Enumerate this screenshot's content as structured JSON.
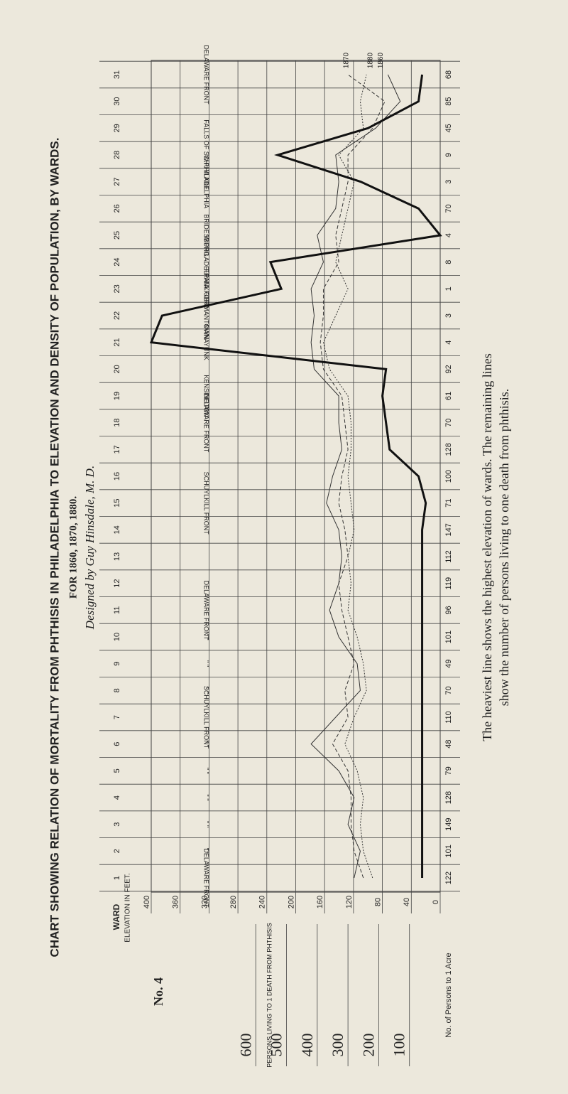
{
  "chart_data": {
    "type": "line",
    "title": "CHART SHOWING RELATION OF MORTALITY FROM PHTHISIS IN PHILADELPHIA TO ELEVATION AND DENSITY OF POPULATION, BY WARDS.",
    "subtitle": "FOR 1860, 1870, 1880.",
    "designer": "Designed by Guy Hinsdale, M. D.",
    "plate": "No. 4",
    "category_label": "WARD",
    "categories": [
      1,
      2,
      3,
      4,
      5,
      6,
      7,
      8,
      9,
      10,
      11,
      12,
      13,
      14,
      15,
      16,
      17,
      18,
      19,
      20,
      21,
      22,
      23,
      24,
      25,
      26,
      27,
      28,
      29,
      30,
      31
    ],
    "density_label": "No. of Persons to 1 Acre",
    "density": [
      122,
      101,
      149,
      128,
      79,
      48,
      110,
      70,
      49,
      101,
      96,
      119,
      112,
      147,
      71,
      100,
      128,
      70,
      61,
      92,
      4,
      3,
      1,
      8,
      4,
      70,
      3,
      9,
      45,
      85,
      68
    ],
    "place_labels": [
      "DELAWARE FRONT",
      "''   ''",
      "''   ''",
      "''   ''",
      "''   ''",
      "''   ''",
      "SCHUYLKILL FRONT",
      "''   ''",
      "''   ''",
      "''   ''",
      "DELAWARE FRONT",
      null,
      null,
      null,
      "SCHUYLKILL FRONT",
      null,
      null,
      "DELAWARE FRONT",
      "KENSINGTON",
      null,
      "MANAYUNK",
      "GERMANTOWN",
      "FRANKFORD",
      "W.PHILADELPHIA",
      "BRIDESBURG",
      null,
      "W.PHILADELPHIA",
      "FALLS OF SCHUYLKILL",
      null,
      null,
      "DELAWARE FRONT"
    ],
    "ylabel": "ELEVATION IN FEET.",
    "ylim": [
      0,
      400
    ],
    "yticks": [
      0,
      40,
      80,
      120,
      160,
      200,
      240,
      280,
      320,
      360,
      400
    ],
    "y2label": "PERSONS LIVING TO 1 DEATH FROM PHTHISIS",
    "y2lim": [
      0,
      940
    ],
    "y2ticks": [
      100,
      200,
      300,
      400,
      500,
      600
    ],
    "elevation": {
      "color": "#111",
      "values": [
        25,
        25,
        25,
        25,
        25,
        25,
        25,
        25,
        25,
        25,
        25,
        25,
        25,
        25,
        20,
        30,
        70,
        75,
        80,
        75,
        400,
        385,
        220,
        235,
        0,
        30,
        110,
        225,
        100,
        30,
        25
      ]
    },
    "series": [
      {
        "name": "1860",
        "color": "#333",
        "axis": "y2",
        "values": [
          280,
          260,
          300,
          280,
          330,
          420,
          340,
          260,
          270,
          330,
          360,
          330,
          320,
          330,
          370,
          350,
          320,
          330,
          330,
          410,
          420,
          410,
          420,
          380,
          400,
          340,
          330,
          340,
          210,
          130,
          170
        ]
      },
      {
        "name": "1870",
        "color": "#333",
        "axis": "y2",
        "values": [
          250,
          280,
          290,
          290,
          300,
          350,
          300,
          310,
          280,
          300,
          320,
          330,
          300,
          310,
          330,
          320,
          300,
          310,
          320,
          380,
          390,
          380,
          380,
          330,
          340,
          320,
          300,
          300,
          220,
          180,
          300
        ]
      },
      {
        "name": "1880",
        "color": "#333",
        "axis": "y2",
        "values": [
          220,
          250,
          260,
          250,
          270,
          310,
          280,
          240,
          250,
          270,
          300,
          290,
          300,
          280,
          290,
          300,
          290,
          290,
          300,
          360,
          380,
          340,
          300,
          340,
          320,
          300,
          280,
          330,
          250,
          260,
          240
        ]
      }
    ],
    "note": "The heaviest line shows the highest elevation of wards. The remaining lines show the number of persons living to one death from phthisis."
  }
}
